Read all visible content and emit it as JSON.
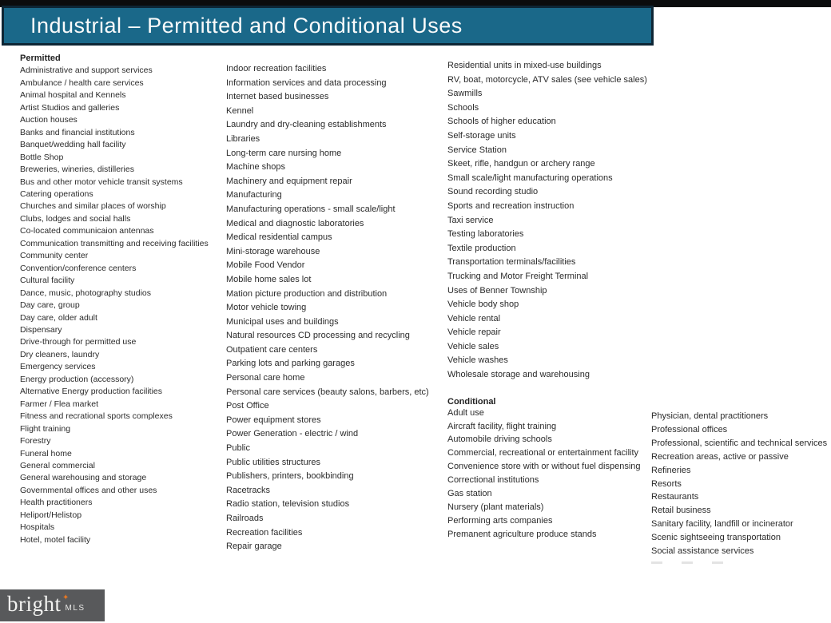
{
  "header": {
    "title": "Industrial – Permitted and Conditional Uses"
  },
  "permitted": {
    "label": "Permitted",
    "col1": [
      "Administrative and support services",
      "Ambulance / health care services",
      "Animal hospital and Kennels",
      "Artist Studios and galleries",
      "Auction houses",
      "Banks and financial institutions",
      "Banquet/wedding hall facility",
      "Bottle Shop",
      "Breweries, wineries, distilleries",
      "Bus and other motor vehicle transit systems",
      "Catering operations",
      "Churches and similar places of worship",
      "Clubs, lodges and social halls",
      "Co-located communicaion antennas",
      "Communication transmitting and receiving facilities",
      "Community center",
      "Convention/conference centers",
      "Cultural facility",
      "Dance, music, photography studios",
      "Day care, group",
      "Day care, older adult",
      "Dispensary",
      "Drive-through for permitted use",
      "Dry cleaners, laundry",
      "Emergency services",
      "Energy production (accessory)",
      "Alternative Energy production facilities",
      "Farmer / Flea market",
      "Fitness and recrational sports complexes",
      "Flight training",
      "Forestry",
      "Funeral home",
      "General commercial",
      "General warehousing and storage",
      "Governmental offices and other uses",
      "Health practitioners",
      "Heliport/Helistop",
      "Hospitals",
      "Hotel, motel facility"
    ],
    "col2": [
      "Indoor recreation facilities",
      "Information services and data processing",
      "Internet based businesses",
      "Kennel",
      "Laundry and dry-cleaning establishments",
      "Libraries",
      "Long-term care nursing home",
      "Machine shops",
      "Machinery and equipment repair",
      "Manufacturing",
      "Manufacturing operations - small scale/light",
      "Medical and diagnostic laboratories",
      "Medical residential campus",
      "Mini-storage warehouse",
      "Mobile Food Vendor",
      "Mobile home sales lot",
      "Mation picture production and distribution",
      "Motor vehicle towing",
      "Municipal uses and buildings",
      "Natural resources CD processing and recycling",
      "Outpatient care centers",
      "Parking lots and parking garages",
      "Personal care home",
      "Personal care services (beauty salons, barbers, etc)",
      "Post Office",
      "Power equipment stores",
      "Power Generation - electric / wind",
      "Public",
      "Public utilities structures",
      "Publishers, printers, bookbinding",
      "Racetracks",
      "Radio station, television studios",
      "Railroads",
      "Recreation facilities",
      "Repair garage"
    ],
    "col3": [
      "Residential units in mixed-use buildings",
      "RV, boat, motorcycle, ATV sales (see vehicle sales)",
      "Sawmills",
      "Schools",
      "Schools of higher education",
      "Self-storage units",
      "Service Station",
      "Skeet, rifle, handgun or archery range",
      "Small scale/light manufacturing operations",
      "Sound recording studio",
      "Sports and recreation instruction",
      "Taxi service",
      "Testing laboratories",
      "Textile production",
      "Transportation terminals/facilities",
      "Trucking and Motor Freight Terminal",
      "Uses of Benner Township",
      "Vehicle body shop",
      "Vehicle rental",
      "Vehicle repair",
      "Vehicle sales",
      "Vehicle washes",
      "Wholesale storage and warehousing"
    ]
  },
  "conditional": {
    "label": "Conditional",
    "col1": [
      "Adult use",
      "Aircraft facility, flight training",
      "Automobile driving schools",
      "Commercial, recreational or entertainment facility",
      "Convenience store with or without fuel dispensing",
      "Correctional institutions",
      "Gas station",
      "Nursery (plant materials)",
      "Performing arts companies",
      "Premanent agriculture produce stands"
    ],
    "col2": [
      "Physician, dental practitioners",
      "Professional offices",
      "Professional, scientific and technical services",
      "Recreation areas, active or passive",
      "Refineries",
      "Resorts",
      "Restaurants",
      "Retail business",
      "Sanitary facility, landfill or incinerator",
      "Scenic sightseeing transportation",
      "Social assistance services"
    ]
  },
  "footer": {
    "brand": "bright",
    "brand_suffix": "MLS",
    "sparkle": "✦"
  },
  "colors": {
    "accent_teal": "#1a6889",
    "header_border": "#0e2635",
    "top_strip": "#0b0c0d",
    "body_text": "#2b2b2b",
    "logo_background": "#58595b",
    "sparkle_orange": "#e87722"
  }
}
